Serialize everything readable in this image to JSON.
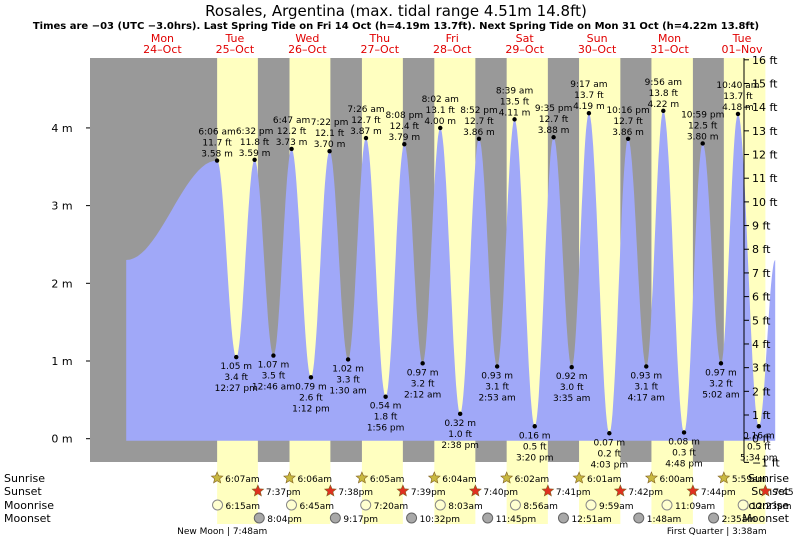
{
  "title": "Rosales, Argentina (max. tidal range 4.51m 14.8ft)",
  "subtitle": "Times are −03 (UTC −3.0hrs). Last Spring Tide on Fri 14 Oct (h=4.19m 13.7ft). Next Spring Tide on Mon 31 Oct (h=4.22m 13.8ft)",
  "colors": {
    "night": "#999999",
    "day": "#ffffc0",
    "water": "#a0a8f8",
    "day_label": "#e00000",
    "sun_star": "#c8b840",
    "sunset_star": "#e03020",
    "moonrise": "#ffffd0",
    "moonset": "#a8a8a8"
  },
  "days": [
    {
      "dow": "Mon",
      "date": "24–Oct"
    },
    {
      "dow": "Tue",
      "date": "25–Oct"
    },
    {
      "dow": "Wed",
      "date": "26–Oct"
    },
    {
      "dow": "Thu",
      "date": "27–Oct"
    },
    {
      "dow": "Fri",
      "date": "28–Oct"
    },
    {
      "dow": "Sat",
      "date": "29–Oct"
    },
    {
      "dow": "Sun",
      "date": "30–Oct"
    },
    {
      "dow": "Mon",
      "date": "31–Oct"
    },
    {
      "dow": "Tue",
      "date": "01–Nov"
    }
  ],
  "chart_data": {
    "type": "area",
    "title": "Rosales, Argentina (max. tidal range 4.51m 14.8ft)",
    "y_left_unit": "m",
    "y_left_ticks": [
      "0 m",
      "1 m",
      "2 m",
      "3 m",
      "4 m"
    ],
    "y_right_ticks": [
      "−1 ft",
      "0 ft",
      "1 ft",
      "2 ft",
      "3 ft",
      "4 ft",
      "5 ft",
      "6 ft",
      "7 ft",
      "8 ft",
      "9 ft",
      "10 ft",
      "11 ft",
      "12 ft",
      "13 ft",
      "14 ft",
      "15 ft",
      "16 ft"
    ],
    "ylim_m": [
      -0.3,
      4.9
    ],
    "xlim_hours": [
      -12,
      204
    ],
    "grid": false,
    "tides": [
      {
        "type": "high",
        "day": 1,
        "time": "6:06 am",
        "ft": "11.7 ft",
        "m": 3.58
      },
      {
        "type": "low",
        "day": 1,
        "time": "12:27 pm",
        "ft": "3.4 ft",
        "m": 1.05
      },
      {
        "type": "high",
        "day": 1,
        "time": "6:32 pm",
        "ft": "11.8 ft",
        "m": 3.59
      },
      {
        "type": "low",
        "day": 2,
        "time": "12:46 am",
        "ft": "3.5 ft",
        "m": 1.07
      },
      {
        "type": "high",
        "day": 2,
        "time": "6:47 am",
        "ft": "12.2 ft",
        "m": 3.73
      },
      {
        "type": "low",
        "day": 2,
        "time": "1:12 pm",
        "ft": "2.6 ft",
        "m": 0.79
      },
      {
        "type": "high",
        "day": 2,
        "time": "7:22 pm",
        "ft": "12.1 ft",
        "m": 3.7
      },
      {
        "type": "low",
        "day": 3,
        "time": "1:30 am",
        "ft": "3.3 ft",
        "m": 1.02
      },
      {
        "type": "high",
        "day": 3,
        "time": "7:26 am",
        "ft": "12.7 ft",
        "m": 3.87
      },
      {
        "type": "low",
        "day": 3,
        "time": "1:56 pm",
        "ft": "1.8 ft",
        "m": 0.54
      },
      {
        "type": "high",
        "day": 3,
        "time": "8:08 pm",
        "ft": "12.4 ft",
        "m": 3.79
      },
      {
        "type": "low",
        "day": 4,
        "time": "2:12 am",
        "ft": "3.2 ft",
        "m": 0.97
      },
      {
        "type": "high",
        "day": 4,
        "time": "8:02 am",
        "ft": "13.1 ft",
        "m": 4.0
      },
      {
        "type": "low",
        "day": 4,
        "time": "2:38 pm",
        "ft": "1.0 ft",
        "m": 0.32
      },
      {
        "type": "high",
        "day": 4,
        "time": "8:52 pm",
        "ft": "12.7 ft",
        "m": 3.86
      },
      {
        "type": "low",
        "day": 5,
        "time": "2:53 am",
        "ft": "3.1 ft",
        "m": 0.93
      },
      {
        "type": "high",
        "day": 5,
        "time": "8:39 am",
        "ft": "13.5 ft",
        "m": 4.11
      },
      {
        "type": "low",
        "day": 5,
        "time": "3:20 pm",
        "ft": "0.5 ft",
        "m": 0.16
      },
      {
        "type": "high",
        "day": 5,
        "time": "9:35 pm",
        "ft": "12.7 ft",
        "m": 3.88
      },
      {
        "type": "low",
        "day": 6,
        "time": "3:35 am",
        "ft": "3.0 ft",
        "m": 0.92
      },
      {
        "type": "high",
        "day": 6,
        "time": "9:17 am",
        "ft": "13.7 ft",
        "m": 4.19
      },
      {
        "type": "low",
        "day": 6,
        "time": "4:03 pm",
        "ft": "0.2 ft",
        "m": 0.07
      },
      {
        "type": "high",
        "day": 6,
        "time": "10:16 pm",
        "ft": "12.7 ft",
        "m": 3.86
      },
      {
        "type": "low",
        "day": 7,
        "time": "4:17 am",
        "ft": "3.1 ft",
        "m": 0.93
      },
      {
        "type": "high",
        "day": 7,
        "time": "9:56 am",
        "ft": "13.8 ft",
        "m": 4.22
      },
      {
        "type": "low",
        "day": 7,
        "time": "4:48 pm",
        "ft": "0.3 ft",
        "m": 0.08
      },
      {
        "type": "high",
        "day": 7,
        "time": "10:59 pm",
        "ft": "12.5 ft",
        "m": 3.8
      },
      {
        "type": "low",
        "day": 8,
        "time": "5:02 am",
        "ft": "3.2 ft",
        "m": 0.97
      },
      {
        "type": "high",
        "day": 8,
        "time": "10:40 am",
        "ft": "13.7 ft",
        "m": 4.18
      },
      {
        "type": "low",
        "day": 8,
        "time": "5:34 pm",
        "ft": "0.5 ft",
        "m": 0.16
      }
    ],
    "sunrise": [
      "6:07am",
      "6:06am",
      "6:05am",
      "6:04am",
      "6:02am",
      "6:01am",
      "6:00am",
      "5:59am"
    ],
    "sunset": [
      "7:37pm",
      "7:38pm",
      "7:39pm",
      "7:40pm",
      "7:41pm",
      "7:42pm",
      "7:44pm",
      "7:45pm"
    ],
    "moonrise": [
      {
        "day": 1,
        "time": "6:15am"
      },
      {
        "day": 2,
        "time": "6:45am"
      },
      {
        "day": 3,
        "time": "7:20am"
      },
      {
        "day": 4,
        "time": "8:03am"
      },
      {
        "day": 5,
        "time": "8:56am"
      },
      {
        "day": 6,
        "time": "9:59am"
      },
      {
        "day": 7,
        "time": "11:09am"
      },
      {
        "day": 8,
        "time": "12:23pm"
      }
    ],
    "moonset": [
      {
        "day": 1,
        "time": "8:04pm"
      },
      {
        "day": 2,
        "time": "9:17pm"
      },
      {
        "day": 3,
        "time": "10:32pm"
      },
      {
        "day": 4,
        "time": "11:45pm"
      },
      {
        "day": 6,
        "time": "12:51am"
      },
      {
        "day": 7,
        "time": "1:48am"
      },
      {
        "day": 8,
        "time": "2:35am"
      }
    ],
    "moon_phases": [
      {
        "label": "New Moon",
        "time": "7:48am",
        "day": 1
      },
      {
        "label": "First Quarter",
        "time": "3:38am",
        "day": 8
      }
    ]
  },
  "row_labels": {
    "sunrise": "Sunrise",
    "sunset": "Sunset",
    "moonrise": "Moonrise",
    "moonset": "Moonset"
  }
}
